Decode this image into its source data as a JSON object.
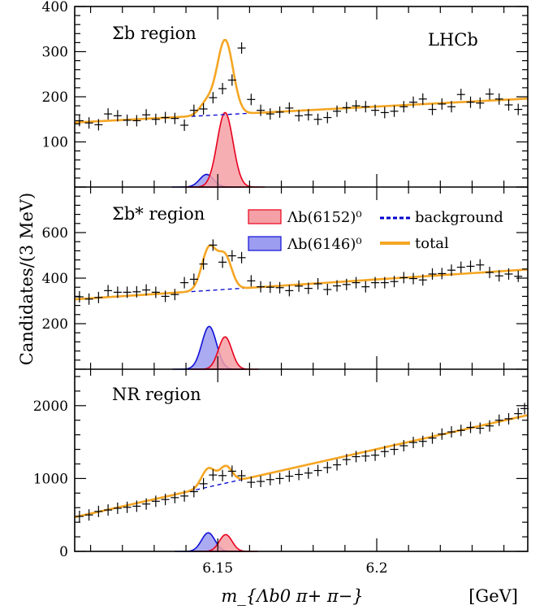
{
  "figure": {
    "experiment": "LHCb",
    "ylabel": "Candidates/(3 MeV)",
    "xlabel": "m_{Λb0 π+ π−}",
    "xunit": "[GeV]",
    "colors": {
      "lb6152": "#e8001c",
      "lb6152_fill": "#f4a0a6",
      "lb6146": "#1010d8",
      "lb6146_fill": "#9c9cf0",
      "background": "#0000cc",
      "total": "#f5a623",
      "data": "#000000"
    },
    "legend": {
      "lb6152": "Λb(6152)⁰",
      "lb6146": "Λb(6146)⁰",
      "background": "background",
      "total": "total"
    }
  },
  "chart_data": [
    {
      "type": "scatter",
      "title": "Σb region",
      "xlim": [
        6.105,
        6.2475
      ],
      "ylim": [
        0,
        400
      ],
      "yticks": [
        100,
        200,
        300,
        400
      ],
      "xticks": [
        6.15,
        6.2
      ],
      "peaks": {
        "lb6146": {
          "mean": 6.1465,
          "sigma": 0.0022,
          "amplitude": 28
        },
        "lb6152": {
          "mean": 6.1523,
          "sigma": 0.0025,
          "amplitude": 165
        }
      },
      "background_line": [
        [
          6.105,
          143
        ],
        [
          6.2475,
          196
        ]
      ],
      "data": [
        [
          6.1065,
          147
        ],
        [
          6.1095,
          142
        ],
        [
          6.1125,
          138
        ],
        [
          6.1155,
          162
        ],
        [
          6.1185,
          158
        ],
        [
          6.1215,
          148
        ],
        [
          6.1245,
          147
        ],
        [
          6.1275,
          160
        ],
        [
          6.1305,
          150
        ],
        [
          6.1335,
          154
        ],
        [
          6.1365,
          152
        ],
        [
          6.1395,
          137
        ],
        [
          6.1425,
          170
        ],
        [
          6.1455,
          173
        ],
        [
          6.1485,
          198
        ],
        [
          6.1515,
          218
        ],
        [
          6.1545,
          237
        ],
        [
          6.1575,
          308
        ],
        [
          6.1605,
          194
        ],
        [
          6.1635,
          170
        ],
        [
          6.1665,
          162
        ],
        [
          6.1695,
          166
        ],
        [
          6.1725,
          175
        ],
        [
          6.1755,
          158
        ],
        [
          6.1785,
          160
        ],
        [
          6.1815,
          150
        ],
        [
          6.1845,
          154
        ],
        [
          6.1875,
          168
        ],
        [
          6.1905,
          176
        ],
        [
          6.1935,
          180
        ],
        [
          6.1965,
          178
        ],
        [
          6.1995,
          170
        ],
        [
          6.2025,
          165
        ],
        [
          6.2055,
          168
        ],
        [
          6.2085,
          178
        ],
        [
          6.2115,
          188
        ],
        [
          6.2145,
          195
        ],
        [
          6.2175,
          172
        ],
        [
          6.2205,
          184
        ],
        [
          6.2235,
          178
        ],
        [
          6.2265,
          205
        ],
        [
          6.2295,
          188
        ],
        [
          6.2325,
          186
        ],
        [
          6.2355,
          206
        ],
        [
          6.2385,
          195
        ],
        [
          6.2415,
          182
        ],
        [
          6.2445,
          172
        ]
      ]
    },
    {
      "type": "scatter",
      "title": "Σb* region",
      "xlim": [
        6.105,
        6.2475
      ],
      "ylim": [
        0,
        800
      ],
      "yticks": [
        200,
        400,
        600
      ],
      "xticks": [
        6.15,
        6.2
      ],
      "peaks": {
        "lb6146": {
          "mean": 6.1473,
          "sigma": 0.0023,
          "amplitude": 188
        },
        "lb6152": {
          "mean": 6.1523,
          "sigma": 0.0021,
          "amplitude": 142
        }
      },
      "background_line": [
        [
          6.105,
          307
        ],
        [
          6.2475,
          438
        ]
      ],
      "data": [
        [
          6.1065,
          318
        ],
        [
          6.1095,
          308
        ],
        [
          6.1125,
          315
        ],
        [
          6.1155,
          345
        ],
        [
          6.1185,
          338
        ],
        [
          6.1215,
          338
        ],
        [
          6.1245,
          340
        ],
        [
          6.1275,
          348
        ],
        [
          6.1305,
          338
        ],
        [
          6.1335,
          320
        ],
        [
          6.1365,
          328
        ],
        [
          6.1395,
          380
        ],
        [
          6.1425,
          395
        ],
        [
          6.1455,
          462
        ],
        [
          6.1485,
          545
        ],
        [
          6.1515,
          470
        ],
        [
          6.1545,
          498
        ],
        [
          6.1575,
          490
        ],
        [
          6.1605,
          388
        ],
        [
          6.1635,
          362
        ],
        [
          6.1665,
          360
        ],
        [
          6.1695,
          358
        ],
        [
          6.1725,
          345
        ],
        [
          6.1755,
          365
        ],
        [
          6.1785,
          355
        ],
        [
          6.1815,
          375
        ],
        [
          6.1845,
          350
        ],
        [
          6.1875,
          366
        ],
        [
          6.1905,
          372
        ],
        [
          6.1935,
          380
        ],
        [
          6.1965,
          362
        ],
        [
          6.1995,
          380
        ],
        [
          6.2025,
          380
        ],
        [
          6.2055,
          385
        ],
        [
          6.2085,
          402
        ],
        [
          6.2115,
          398
        ],
        [
          6.2145,
          392
        ],
        [
          6.2175,
          418
        ],
        [
          6.2205,
          420
        ],
        [
          6.2235,
          435
        ],
        [
          6.2265,
          448
        ],
        [
          6.2295,
          452
        ],
        [
          6.2325,
          458
        ],
        [
          6.2355,
          425
        ],
        [
          6.2385,
          410
        ],
        [
          6.2415,
          418
        ],
        [
          6.2445,
          408
        ]
      ]
    },
    {
      "type": "scatter",
      "title": "NR region",
      "xlim": [
        6.105,
        6.2475
      ],
      "ylim": [
        0,
        2500
      ],
      "yticks": [
        0,
        1000,
        2000
      ],
      "xticks": [
        6.15,
        6.2
      ],
      "peaks": {
        "lb6146": {
          "mean": 6.147,
          "sigma": 0.0021,
          "amplitude": 255
        },
        "lb6152": {
          "mean": 6.1525,
          "sigma": 0.002,
          "amplitude": 230
        }
      },
      "background_line": [
        [
          6.105,
          470
        ],
        [
          6.2475,
          1870
        ]
      ],
      "data": [
        [
          6.1065,
          480
        ],
        [
          6.1095,
          500
        ],
        [
          6.1125,
          548
        ],
        [
          6.1155,
          568
        ],
        [
          6.1185,
          592
        ],
        [
          6.1215,
          605
        ],
        [
          6.1245,
          620
        ],
        [
          6.1275,
          650
        ],
        [
          6.1305,
          688
        ],
        [
          6.1335,
          712
        ],
        [
          6.1365,
          738
        ],
        [
          6.1395,
          760
        ],
        [
          6.1425,
          820
        ],
        [
          6.1455,
          928
        ],
        [
          6.1485,
          1048
        ],
        [
          6.1515,
          1040
        ],
        [
          6.1545,
          1100
        ],
        [
          6.1575,
          1038
        ],
        [
          6.1605,
          948
        ],
        [
          6.1635,
          960
        ],
        [
          6.1665,
          985
        ],
        [
          6.1695,
          1000
        ],
        [
          6.1725,
          1032
        ],
        [
          6.1755,
          1055
        ],
        [
          6.1785,
          1075
        ],
        [
          6.1815,
          1110
        ],
        [
          6.1845,
          1150
        ],
        [
          6.1875,
          1188
        ],
        [
          6.1905,
          1260
        ],
        [
          6.1935,
          1300
        ],
        [
          6.1965,
          1308
        ],
        [
          6.1995,
          1320
        ],
        [
          6.2025,
          1370
        ],
        [
          6.2055,
          1400
        ],
        [
          6.2085,
          1450
        ],
        [
          6.2115,
          1495
        ],
        [
          6.2145,
          1510
        ],
        [
          6.2175,
          1555
        ],
        [
          6.2205,
          1610
        ],
        [
          6.2235,
          1640
        ],
        [
          6.2265,
          1660
        ],
        [
          6.2295,
          1702
        ],
        [
          6.2325,
          1690
        ],
        [
          6.2355,
          1722
        ],
        [
          6.2385,
          1800
        ],
        [
          6.2415,
          1820
        ],
        [
          6.2445,
          1890
        ],
        [
          6.2465,
          1960
        ]
      ]
    }
  ]
}
